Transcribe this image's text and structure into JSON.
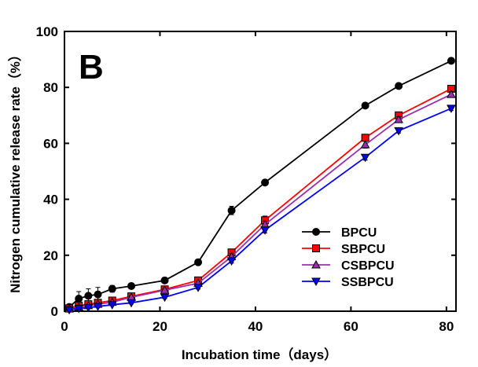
{
  "chart_data": {
    "type": "line",
    "panel_label": "B",
    "xlabel": "Incubation time（days）",
    "ylabel": "Nitrogen cumulative release rate（%）",
    "xlim": [
      0,
      82
    ],
    "ylim": [
      0,
      100
    ],
    "x_ticks": [
      0,
      20,
      40,
      60,
      80
    ],
    "y_ticks": [
      0,
      20,
      40,
      60,
      80,
      100
    ],
    "grid": false,
    "legend_position": "lower-right",
    "x": [
      1,
      3,
      5,
      7,
      10,
      14,
      21,
      28,
      35,
      42,
      63,
      70,
      81
    ],
    "series": [
      {
        "name": "BPCU",
        "color": "#000000",
        "marker": "circle",
        "values": [
          1.5,
          4.5,
          5.5,
          6.0,
          8.0,
          9.0,
          11.0,
          17.5,
          36.0,
          46.0,
          73.5,
          80.5,
          89.5
        ],
        "errors": [
          1.0,
          2.5,
          2.5,
          2.5,
          1.2,
          1.0,
          1.0,
          1.0,
          1.5,
          1.0,
          0.8,
          0.8,
          0.8
        ]
      },
      {
        "name": "SBPCU",
        "color": "#ff0000",
        "marker": "square",
        "values": [
          1.0,
          2.0,
          2.5,
          3.0,
          3.8,
          5.3,
          7.8,
          11.0,
          21.0,
          32.5,
          62.0,
          70.0,
          79.5
        ],
        "errors": [
          0.5,
          0.5,
          0.5,
          0.5,
          0.5,
          0.5,
          0.7,
          0.8,
          1.0,
          1.5,
          1.2,
          1.0,
          1.0
        ]
      },
      {
        "name": "CSBPCU",
        "color": "#9b2fae",
        "marker": "triangle-up",
        "values": [
          0.8,
          1.5,
          2.0,
          2.5,
          3.2,
          5.0,
          7.5,
          10.0,
          19.5,
          31.0,
          59.5,
          68.5,
          77.5
        ],
        "errors": [
          0.4,
          0.4,
          0.4,
          0.4,
          0.4,
          0.5,
          0.6,
          0.8,
          1.0,
          1.2,
          1.2,
          1.0,
          1.0
        ]
      },
      {
        "name": "SSBPCU",
        "color": "#0000ff",
        "marker": "triangle-down",
        "values": [
          0.5,
          1.0,
          1.3,
          1.7,
          2.3,
          3.0,
          5.0,
          8.5,
          18.0,
          29.0,
          55.0,
          64.5,
          72.5
        ],
        "errors": [
          0.3,
          0.3,
          0.3,
          0.3,
          0.3,
          0.4,
          0.5,
          0.6,
          0.8,
          1.0,
          1.0,
          0.8,
          0.8
        ]
      }
    ]
  }
}
